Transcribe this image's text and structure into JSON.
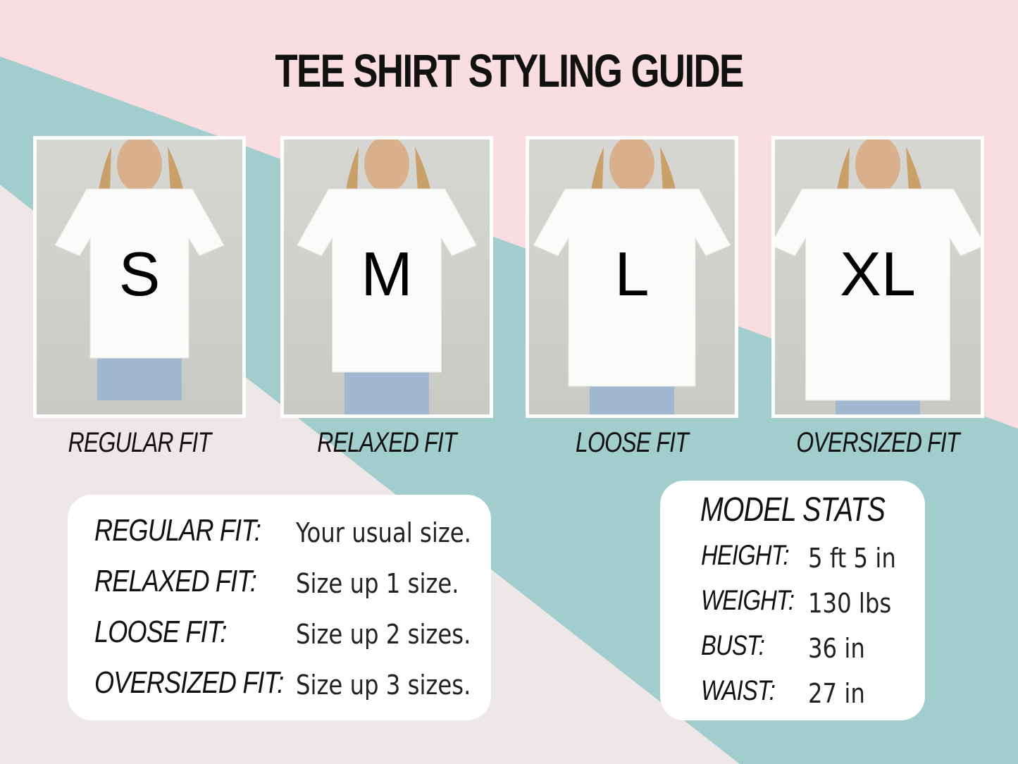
{
  "title": "TEE SHIRT STYLING GUIDE",
  "colors": {
    "pink": "#f9dde0",
    "teal": "#a1cdcd",
    "grey": "#ede8e7"
  },
  "photos": [
    {
      "size": "S",
      "fit": "REGULAR FIT"
    },
    {
      "size": "M",
      "fit": "RELAXED FIT"
    },
    {
      "size": "L",
      "fit": "LOOSE FIT"
    },
    {
      "size": "XL",
      "fit": "OVERSIZED FIT"
    }
  ],
  "fit_guide": [
    {
      "label": "REGULAR FIT:",
      "value": "Your usual size."
    },
    {
      "label": "RELAXED FIT:",
      "value": "Size up 1 size."
    },
    {
      "label": "LOOSE FIT:",
      "value": "Size up 2 sizes."
    },
    {
      "label": "OVERSIZED FIT:",
      "value": "Size up 3 sizes."
    }
  ],
  "model_stats": {
    "title": "MODEL STATS",
    "rows": [
      {
        "label": "HEIGHT:",
        "value": "5 ft 5 in"
      },
      {
        "label": "WEIGHT:",
        "value": "130 lbs"
      },
      {
        "label": "BUST:",
        "value": "36 in"
      },
      {
        "label": "WAIST:",
        "value": "27 in"
      }
    ]
  }
}
